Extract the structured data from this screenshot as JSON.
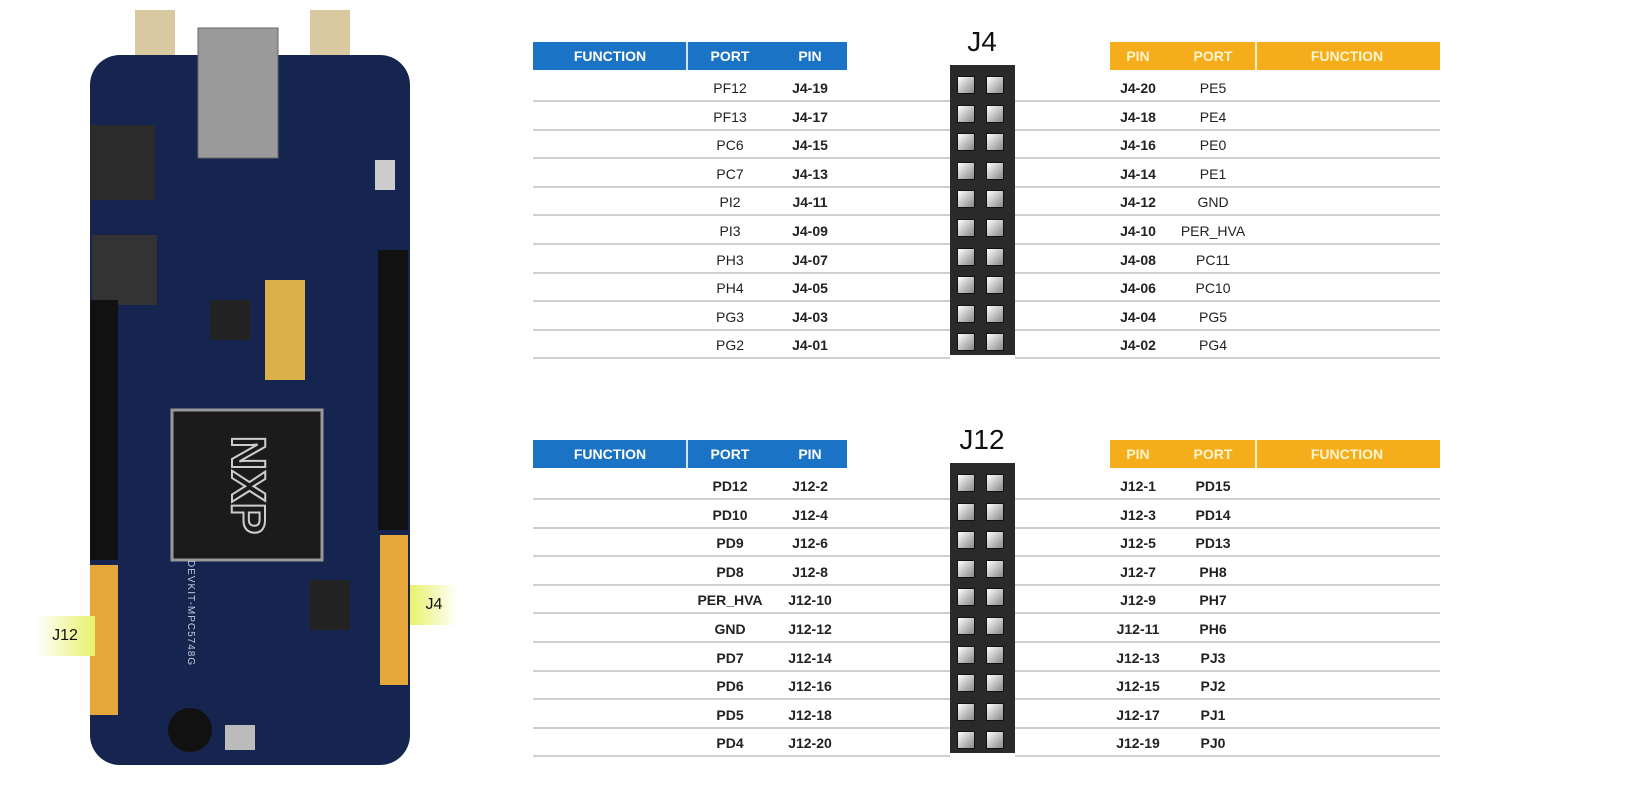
{
  "board": {
    "logo": "NXP",
    "model": "DEVKIT-MPC5748G",
    "left_label": "J12",
    "right_label": "J4"
  },
  "headers": {
    "function": "FUNCTION",
    "port": "PORT",
    "pin": "PIN"
  },
  "colors": {
    "left_header": "#1a73c4",
    "right_header": "#f5ad1b"
  },
  "tables": [
    {
      "title": "J4",
      "left_rows": [
        {
          "port": "PF12",
          "pin": "J4-19"
        },
        {
          "port": "PF13",
          "pin": "J4-17"
        },
        {
          "port": "PC6",
          "pin": "J4-15"
        },
        {
          "port": "PC7",
          "pin": "J4-13"
        },
        {
          "port": "PI2",
          "pin": "J4-11"
        },
        {
          "port": "PI3",
          "pin": "J4-09"
        },
        {
          "port": "PH3",
          "pin": "J4-07"
        },
        {
          "port": "PH4",
          "pin": "J4-05"
        },
        {
          "port": "PG3",
          "pin": "J4-03"
        },
        {
          "port": "PG2",
          "pin": "J4-01"
        }
      ],
      "right_rows": [
        {
          "pin": "J4-20",
          "port": "PE5"
        },
        {
          "pin": "J4-18",
          "port": "PE4"
        },
        {
          "pin": "J4-16",
          "port": "PE0"
        },
        {
          "pin": "J4-14",
          "port": "PE1"
        },
        {
          "pin": "J4-12",
          "port": "GND"
        },
        {
          "pin": "J4-10",
          "port": "PER_HVA"
        },
        {
          "pin": "J4-08",
          "port": "PC11"
        },
        {
          "pin": "J4-06",
          "port": "PC10"
        },
        {
          "pin": "J4-04",
          "port": "PG5"
        },
        {
          "pin": "J4-02",
          "port": "PG4"
        }
      ]
    },
    {
      "title": "J12",
      "left_rows": [
        {
          "port": "PD12",
          "pin": "J12-2"
        },
        {
          "port": "PD10",
          "pin": "J12-4"
        },
        {
          "port": "PD9",
          "pin": "J12-6"
        },
        {
          "port": "PD8",
          "pin": "J12-8"
        },
        {
          "port": "PER_HVA",
          "pin": "J12-10"
        },
        {
          "port": "GND",
          "pin": "J12-12"
        },
        {
          "port": "PD7",
          "pin": "J12-14"
        },
        {
          "port": "PD6",
          "pin": "J12-16"
        },
        {
          "port": "PD5",
          "pin": "J12-18"
        },
        {
          "port": "PD4",
          "pin": "J12-20"
        }
      ],
      "right_rows": [
        {
          "pin": "J12-1",
          "port": "PD15"
        },
        {
          "pin": "J12-3",
          "port": "PD14"
        },
        {
          "pin": "J12-5",
          "port": "PD13"
        },
        {
          "pin": "J12-7",
          "port": "PH8"
        },
        {
          "pin": "J12-9",
          "port": "PH7"
        },
        {
          "pin": "J12-11",
          "port": "PH6"
        },
        {
          "pin": "J12-13",
          "port": "PJ3"
        },
        {
          "pin": "J12-15",
          "port": "PJ2"
        },
        {
          "pin": "J12-17",
          "port": "PJ1"
        },
        {
          "pin": "J12-19",
          "port": "PJ0"
        }
      ]
    }
  ]
}
